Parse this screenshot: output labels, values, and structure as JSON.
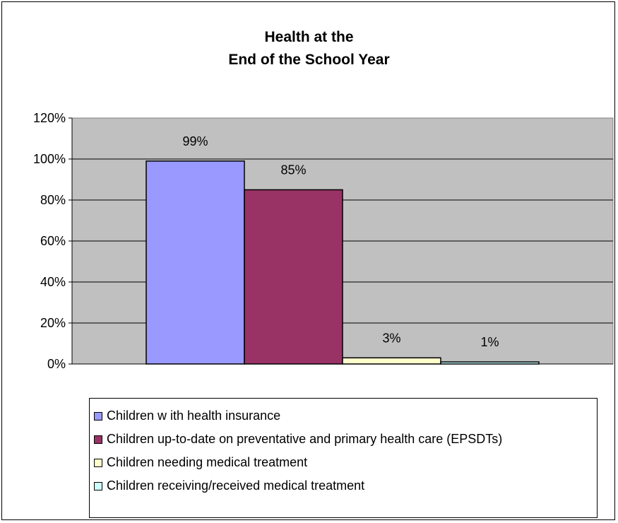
{
  "chart_data": {
    "type": "bar",
    "title_lines": [
      "Health at the",
      "End of the School Year"
    ],
    "ylim": [
      0,
      1.2
    ],
    "yticks": [
      "0%",
      "20%",
      "40%",
      "60%",
      "80%",
      "100%",
      "120%"
    ],
    "grid": true,
    "legend_position": "bottom",
    "series": [
      {
        "name": "Children w ith health insurance",
        "value": 0.99,
        "label": "99%",
        "color": "#9999ff"
      },
      {
        "name": "Children up-to-date on preventative and primary health care (EPSDTs)",
        "value": 0.85,
        "label": "85%",
        "color": "#993366"
      },
      {
        "name": "Children needing medical treatment",
        "value": 0.03,
        "label": "3%",
        "color": "#ffffcc"
      },
      {
        "name": "Children receiving/received medical treatment",
        "value": 0.01,
        "label": "1%",
        "color": "#ccffff"
      }
    ],
    "plot_background": "#c0c0c0"
  }
}
